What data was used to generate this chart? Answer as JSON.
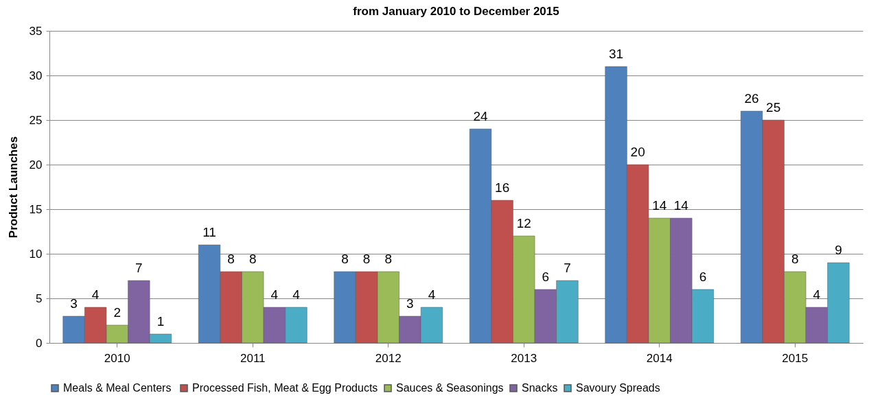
{
  "chart_data": {
    "type": "bar",
    "title": "from January 2010 to December 2015",
    "ylabel": "Product Launches",
    "categories": [
      "2010",
      "2011",
      "2012",
      "2013",
      "2014",
      "2015"
    ],
    "series": [
      {
        "name": "Meals &  Meal Centers",
        "color": "#4f81bd",
        "values": [
          3,
          11,
          8,
          24,
          31,
          26
        ]
      },
      {
        "name": "Processed Fish, Meat & Egg Products",
        "color": "#c0504d",
        "values": [
          4,
          8,
          8,
          16,
          20,
          25
        ]
      },
      {
        "name": "Sauces & Seasonings",
        "color": "#9bbb59",
        "values": [
          2,
          8,
          8,
          12,
          14,
          8
        ]
      },
      {
        "name": "Snacks",
        "color": "#8064a2",
        "values": [
          7,
          4,
          3,
          6,
          14,
          4
        ]
      },
      {
        "name": "Savoury Spreads",
        "color": "#4bacc6",
        "values": [
          1,
          4,
          4,
          7,
          6,
          9
        ]
      }
    ],
    "ylim": [
      0,
      35
    ],
    "yticks": [
      0,
      5,
      10,
      15,
      20,
      25,
      30,
      35
    ],
    "grid": "y",
    "legend": "bottom",
    "data_labels": true
  }
}
